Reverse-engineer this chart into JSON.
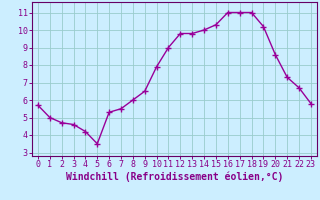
{
  "x": [
    0,
    1,
    2,
    3,
    4,
    5,
    6,
    7,
    8,
    9,
    10,
    11,
    12,
    13,
    14,
    15,
    16,
    17,
    18,
    19,
    20,
    21,
    22,
    23
  ],
  "y": [
    5.7,
    5.0,
    4.7,
    4.6,
    4.2,
    3.5,
    5.3,
    5.5,
    6.0,
    6.5,
    7.9,
    9.0,
    9.8,
    9.8,
    10.0,
    10.3,
    11.0,
    11.0,
    11.0,
    10.2,
    8.6,
    7.3,
    6.7,
    5.8
  ],
  "line_color": "#990099",
  "marker": "+",
  "markersize": 4,
  "linewidth": 1.0,
  "xlabel": "Windchill (Refroidissement éolien,°C)",
  "xlabel_fontsize": 7,
  "bg_color": "#cceeff",
  "grid_color": "#99cccc",
  "xlim": [
    -0.5,
    23.5
  ],
  "ylim": [
    2.8,
    11.6
  ],
  "yticks": [
    3,
    4,
    5,
    6,
    7,
    8,
    9,
    10,
    11
  ],
  "xtick_labels": [
    "0",
    "1",
    "2",
    "3",
    "4",
    "5",
    "6",
    "7",
    "8",
    "9",
    "10",
    "11",
    "12",
    "13",
    "14",
    "15",
    "16",
    "17",
    "18",
    "19",
    "20",
    "21",
    "22",
    "23"
  ],
  "tick_fontsize": 6,
  "label_color": "#880088",
  "spine_color": "#660066"
}
